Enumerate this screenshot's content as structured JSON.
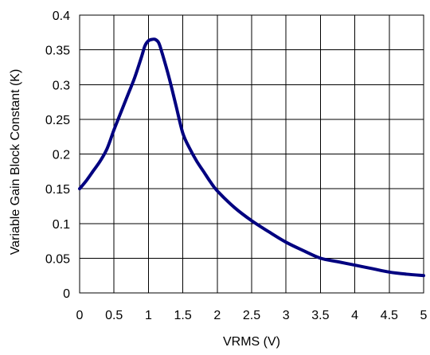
{
  "chart_data": {
    "type": "line",
    "title": "",
    "xlabel": "VRMS (V)",
    "ylabel": "Variable Gain Block Constant (K)",
    "xlim": [
      0,
      5
    ],
    "ylim": [
      0,
      0.4
    ],
    "x_ticks": [
      "0",
      "0.5",
      "1",
      "1.5",
      "2",
      "2.5",
      "3",
      "3.5",
      "4",
      "4.5",
      "5"
    ],
    "y_ticks": [
      "0",
      "0.05",
      "0.1",
      "0.15",
      "0.2",
      "0.25",
      "0.3",
      "0.35",
      "0.4"
    ],
    "grid": true,
    "legend": "none",
    "series": [
      {
        "color": "#000080",
        "points": [
          [
            0,
            0.15
          ],
          [
            0.1,
            0.162
          ],
          [
            0.2,
            0.176
          ],
          [
            0.3,
            0.19
          ],
          [
            0.4,
            0.208
          ],
          [
            0.5,
            0.235
          ],
          [
            0.6,
            0.26
          ],
          [
            0.7,
            0.285
          ],
          [
            0.8,
            0.31
          ],
          [
            0.9,
            0.34
          ],
          [
            0.95,
            0.356
          ],
          [
            1.0,
            0.363
          ],
          [
            1.05,
            0.365
          ],
          [
            1.1,
            0.365
          ],
          [
            1.15,
            0.36
          ],
          [
            1.2,
            0.345
          ],
          [
            1.3,
            0.31
          ],
          [
            1.4,
            0.27
          ],
          [
            1.5,
            0.23
          ],
          [
            1.6,
            0.208
          ],
          [
            1.7,
            0.19
          ],
          [
            1.8,
            0.175
          ],
          [
            1.9,
            0.16
          ],
          [
            2.0,
            0.147
          ],
          [
            2.25,
            0.123
          ],
          [
            2.5,
            0.104
          ],
          [
            2.75,
            0.088
          ],
          [
            3.0,
            0.073
          ],
          [
            3.25,
            0.061
          ],
          [
            3.5,
            0.05
          ],
          [
            3.75,
            0.045
          ],
          [
            4.0,
            0.04
          ],
          [
            4.25,
            0.035
          ],
          [
            4.5,
            0.03
          ],
          [
            4.75,
            0.027
          ],
          [
            5.0,
            0.025
          ]
        ]
      }
    ]
  }
}
